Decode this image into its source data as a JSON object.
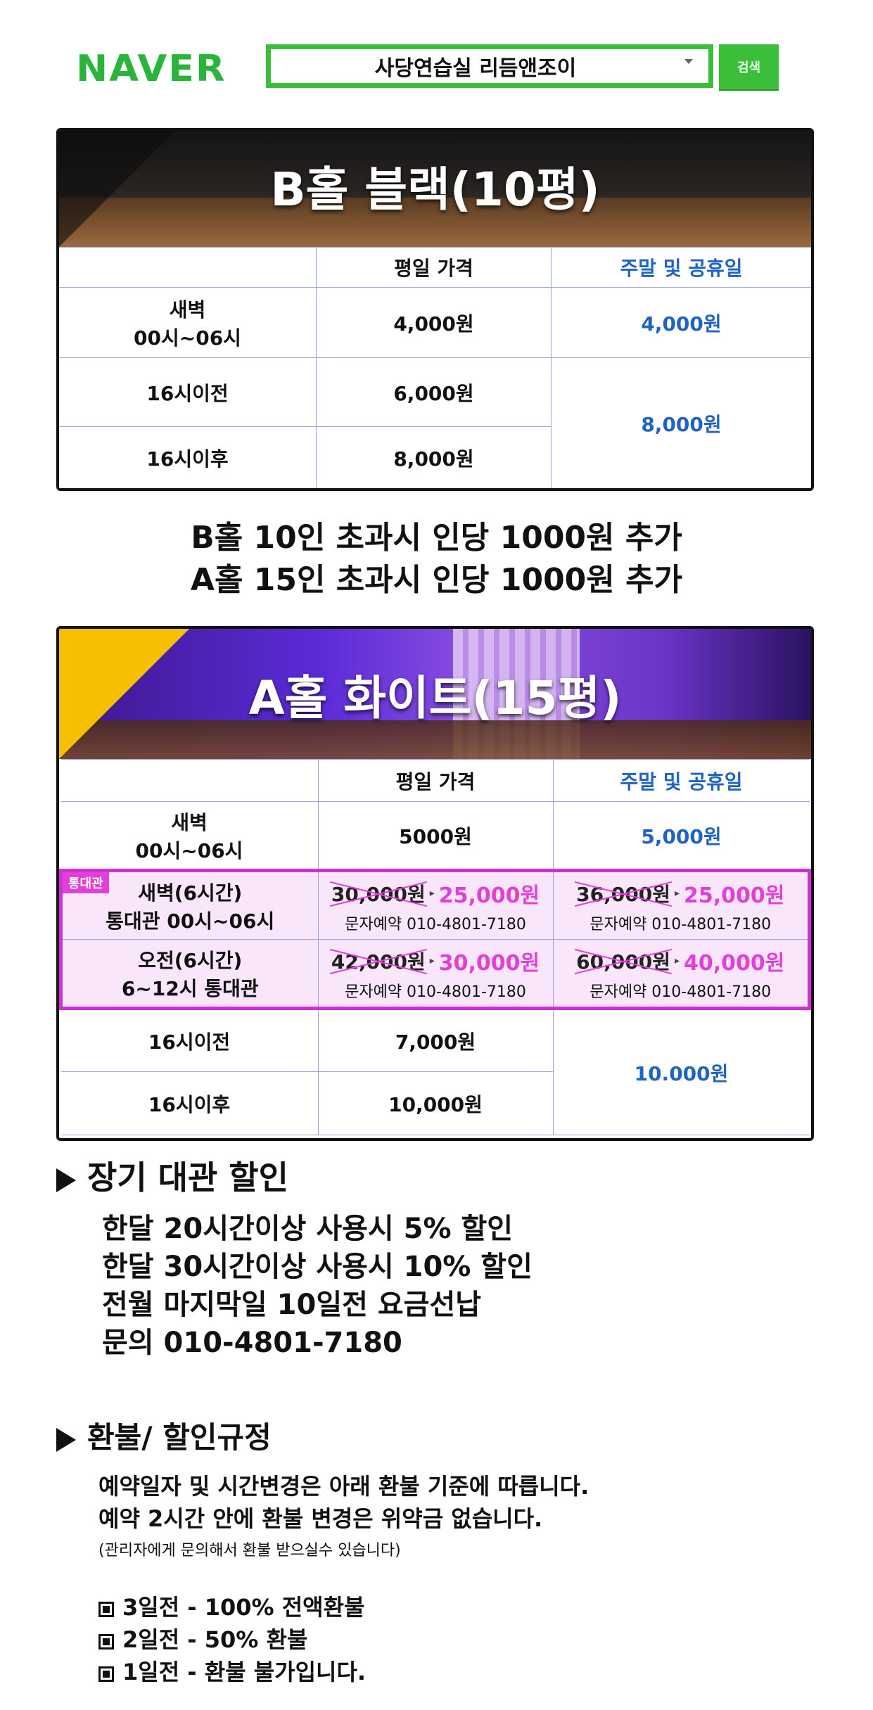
{
  "search": {
    "logo": "NAVER",
    "query": "사당연습실 리듬앤조이",
    "button_label": "검색"
  },
  "hall_b": {
    "title": "B홀 블랙(10평)",
    "header": {
      "blank": "",
      "weekday": "평일 가격",
      "weekend": "주말 및 공휴일"
    },
    "rows": [
      {
        "label_line1": "새벽",
        "label_line2": "00시~06시",
        "weekday": "4,000원",
        "weekend": "4,000원"
      },
      {
        "label": "16시이전",
        "weekday": "6,000원"
      },
      {
        "label": "16시이후",
        "weekday": "8,000원"
      }
    ],
    "weekend_merged": "8,000원"
  },
  "notes": {
    "line1": "B홀 10인 초과시 인당 1000원 추가",
    "line2": "A홀 15인 초과시 인당 1000원 추가"
  },
  "hall_a": {
    "title": "A홀 화이트(15평)",
    "header": {
      "blank": "",
      "weekday": "평일 가격",
      "weekend": "주말 및 공휴일"
    },
    "dawn": {
      "label_line1": "새벽",
      "label_line2": "00시~06시",
      "weekday": "5000원",
      "weekend": "5,000원"
    },
    "tag": "통대관",
    "full_rental": [
      {
        "label_line1": "새벽(6시간)",
        "label_line2": "통대관 00시~06시",
        "weekday_old": "30,000원",
        "weekday_new": "25,000원",
        "weekend_old": "36,000원",
        "weekend_new": "25,000원",
        "contact": "문자예약 010-4801-7180"
      },
      {
        "label_line1": "오전(6시간)",
        "label_line2": "6~12시 통대관",
        "weekday_old": "42,000원",
        "weekday_new": "30,000원",
        "weekend_old": "60,000원",
        "weekend_new": "40,000원",
        "contact": "문자예약 010-4801-7180"
      }
    ],
    "rows": [
      {
        "label": "16시이전",
        "weekday": "7,000원"
      },
      {
        "label": "16시이후",
        "weekday": "10,000원"
      }
    ],
    "weekend_merged": "10.000원"
  },
  "long_term": {
    "title": "장기 대관 할인",
    "lines": [
      "한달 20시간이상 사용시 5% 할인",
      "한달 30시간이상 사용시 10% 할인",
      "전월 마지막일 10일전 요금선납",
      "문의 010-4801-7180"
    ]
  },
  "refund": {
    "title": "환불/ 할인규정",
    "lines": [
      "예약일자 및 시간변경은 아래 환불 기준에 따릅니다.",
      "예약 2시간 안에 환불 변경은 위약금 없습니다."
    ],
    "small_note": "(관리자에게 문의해서 환불 받으실수 있습니다)",
    "items": [
      "3일전 - 100% 전액환불",
      "2일전 - 50% 환불",
      "1일전 - 환불 불가입니다."
    ]
  },
  "colors": {
    "naver_green": "#3bbf3a",
    "weekend_blue": "#1f63c6",
    "promo_pink": "#e040d8"
  }
}
